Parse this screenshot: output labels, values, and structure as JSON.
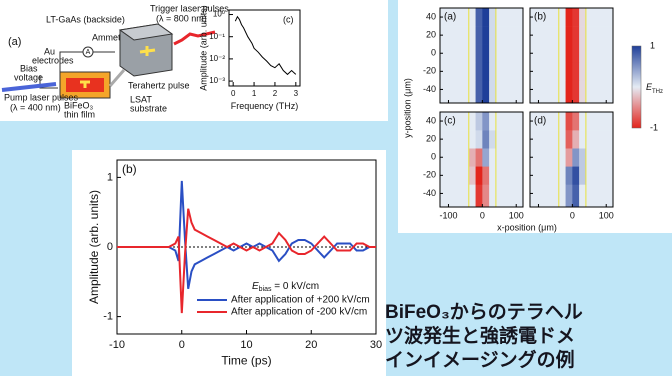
{
  "diagram": {
    "label": "(a)",
    "lt_gaas": "LT-GaAs (backside)",
    "trigger": "Trigger laser pulses",
    "trigger_wl": "(λ = 800 nm)",
    "ammeter": "Ammeter",
    "ammeter_symbol": "A",
    "au": "Au",
    "electrodes": "electrodes",
    "bias": "Bias",
    "voltage": "voltage",
    "thz": "Terahertz pulse",
    "pump": "Pump laser pulses",
    "pump_wl": "(λ = 400 nm)",
    "bfo": "BiFeO₃",
    "thin_film": "thin film",
    "lsat": "LSAT",
    "substrate": "substrate"
  },
  "chart_data": [
    {
      "type": "line",
      "label": "(c)",
      "xlabel": "Frequency (THz)",
      "ylabel": "Amplitude (arb. units)",
      "log_y": true,
      "color": "#000000",
      "x": [
        0.1,
        0.2,
        0.3,
        0.4,
        0.5,
        0.7,
        0.9,
        1.0,
        1.2,
        1.4,
        1.6,
        1.8,
        2.0,
        2.2,
        2.4,
        2.6,
        2.8,
        3.0
      ],
      "values": [
        0.5,
        0.8,
        0.6,
        0.35,
        0.25,
        0.1,
        0.05,
        0.03,
        0.02,
        0.012,
        0.008,
        0.005,
        0.004,
        0.006,
        0.003,
        0.002,
        0.003,
        0.002
      ],
      "xlim": [
        -0.2,
        3.2
      ],
      "ylim": [
        0.0006,
        1.6
      ],
      "xticks": [
        0,
        1,
        2,
        3
      ],
      "yticks": [
        {
          "value": 1,
          "label": "10⁰"
        },
        {
          "value": 0.1,
          "label": "10⁻¹"
        },
        {
          "value": 0.01,
          "label": "10⁻²"
        },
        {
          "value": 0.001,
          "label": "10⁻³"
        }
      ]
    },
    {
      "type": "line",
      "label": "(b)",
      "xlabel": "Time (ps)",
      "ylabel": "Amplitude (arb. units)",
      "log_y": false,
      "legend": "lower right",
      "annotation": [
        "E",
        "bias",
        " = 0 kV/cm"
      ],
      "x": [
        -10,
        -8,
        -6,
        -4,
        -2,
        -1,
        -0.5,
        0,
        0.5,
        1,
        1.5,
        2,
        3,
        4,
        5,
        6,
        7,
        8,
        9,
        10,
        11,
        12,
        13,
        14,
        15,
        16,
        17,
        18,
        19,
        20,
        21,
        22,
        23,
        24,
        25,
        26,
        27,
        28,
        29,
        30
      ],
      "series": [
        {
          "name": "After application of +200 kV/cm",
          "color": "#2a4fc4",
          "values": [
            0,
            0,
            0,
            0,
            0,
            -0.05,
            -0.2,
            0.95,
            0.1,
            -0.6,
            -0.35,
            -0.25,
            -0.2,
            -0.15,
            -0.1,
            -0.05,
            0,
            -0.05,
            0,
            0.05,
            0,
            0.05,
            0,
            -0.05,
            -0.2,
            -0.1,
            0.05,
            0.1,
            0.1,
            0.05,
            -0.05,
            -0.15,
            -0.05,
            0.05,
            0.05,
            0.05,
            -0.05,
            -0.05,
            0,
            0
          ]
        },
        {
          "name": "After application of -200 kV/cm",
          "color": "#e8262c",
          "values": [
            0,
            0,
            0,
            0,
            0,
            0.05,
            0.15,
            -0.95,
            -0.1,
            0.55,
            0.35,
            0.25,
            0.2,
            0.15,
            0.1,
            0.05,
            0,
            0.05,
            0,
            -0.05,
            0,
            -0.05,
            0,
            0.05,
            0.2,
            0.1,
            -0.05,
            -0.1,
            -0.1,
            -0.05,
            0.05,
            0.15,
            0.05,
            -0.05,
            -0.05,
            -0.05,
            0.05,
            0.05,
            0,
            0
          ]
        }
      ],
      "xlim": [
        -10,
        30
      ],
      "ylim": [
        -1.25,
        1.25
      ],
      "xticks": [
        -10,
        0,
        10,
        20,
        30
      ],
      "yticks": [
        -1,
        0,
        1
      ]
    },
    {
      "type": "heatmap",
      "xlabel": "x-position (μm)",
      "ylabel": "y-position (μm)",
      "x_edges": [
        -125,
        -40,
        -20,
        0,
        20,
        40,
        120
      ],
      "y_edges": [
        -55,
        -30,
        -10,
        10,
        30,
        50
      ],
      "xlim": [
        -125,
        120
      ],
      "ylim": [
        -55,
        50
      ],
      "xticks": [
        -100,
        0,
        100
      ],
      "yticks": [
        -40,
        -20,
        0,
        20,
        40
      ],
      "colors": {
        "positive": "#1f3f99",
        "zero": "#e4ebf4",
        "negative": "#e3241c"
      },
      "clim": [
        -1,
        1
      ],
      "colorbar_ticks": [
        1,
        -1
      ],
      "colorbar_label": [
        "E",
        "THz"
      ],
      "panels": [
        {
          "label": "(a)",
          "values": [
            [
              0,
              0,
              0.8,
              1,
              0.1,
              0
            ],
            [
              0,
              0,
              0.8,
              1,
              0.1,
              0
            ],
            [
              0,
              0,
              0.8,
              1,
              0.1,
              0
            ],
            [
              0,
              0,
              0.8,
              1,
              0.1,
              0
            ],
            [
              0,
              0,
              0.8,
              1,
              0.1,
              0
            ]
          ]
        },
        {
          "label": "(b)",
          "values": [
            [
              0,
              0,
              -1,
              -0.9,
              -0.1,
              0
            ],
            [
              0,
              0,
              -1,
              -0.9,
              -0.1,
              0
            ],
            [
              0,
              0,
              -1,
              -0.9,
              -0.1,
              0
            ],
            [
              0,
              0,
              -1,
              -0.9,
              -0.1,
              0
            ],
            [
              0,
              0,
              -1,
              -0.9,
              -0.1,
              0
            ]
          ]
        },
        {
          "label": "(c)",
          "values": [
            [
              0,
              0,
              -0.9,
              -0.5,
              0,
              0
            ],
            [
              0,
              -0.2,
              -1,
              -0.6,
              0,
              0
            ],
            [
              0,
              -0.3,
              -0.6,
              0.4,
              0,
              0
            ],
            [
              0,
              0,
              0.1,
              0.6,
              0.1,
              0
            ],
            [
              0,
              0,
              0.2,
              0.5,
              0,
              0
            ]
          ]
        },
        {
          "label": "(d)",
          "values": [
            [
              0,
              0,
              0.5,
              0.8,
              0,
              0
            ],
            [
              0,
              0,
              0.6,
              0.9,
              0.2,
              0
            ],
            [
              0,
              0,
              -0.4,
              0.5,
              0.2,
              0
            ],
            [
              0,
              0,
              -0.7,
              -0.3,
              0,
              0
            ],
            [
              0,
              0,
              -0.8,
              -0.6,
              0,
              0
            ]
          ]
        }
      ]
    }
  ],
  "caption": {
    "lines": [
      "BiFeO₃からのテラヘル",
      "ツ波発生と強誘電ドメ",
      "インイメージングの例"
    ]
  }
}
